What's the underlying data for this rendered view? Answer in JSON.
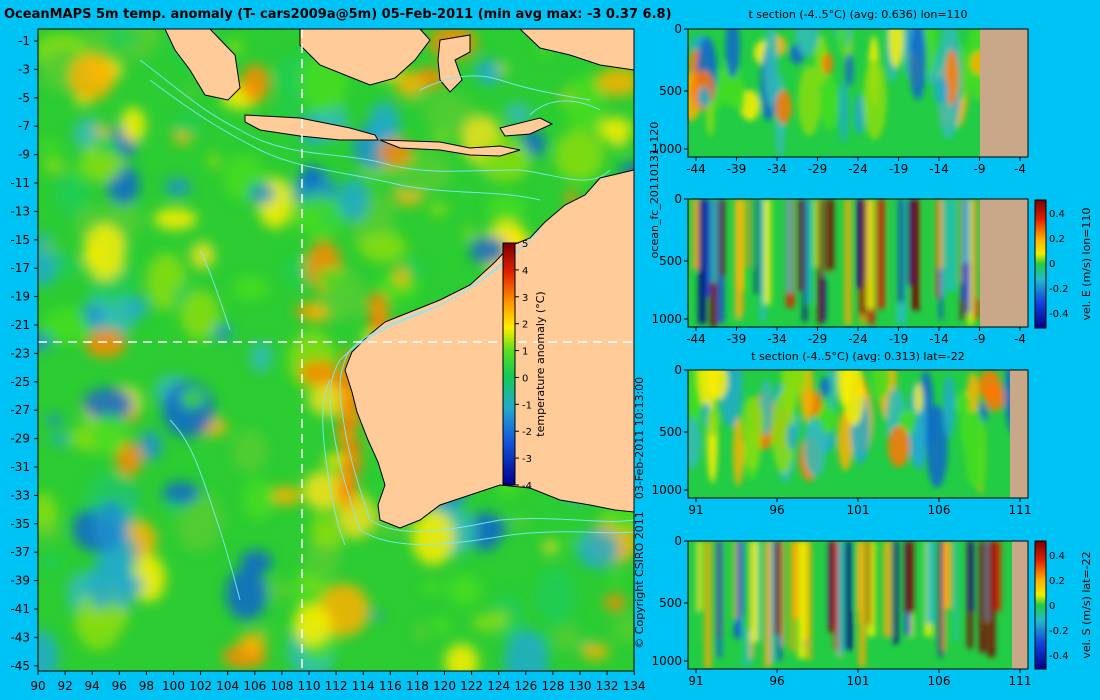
{
  "main_map": {
    "title": "OceanMAPS 5m temp. anomaly (T- cars2009a@5m) 05-Feb-2011 (min avg max: -3 0.37 6.8)",
    "lat_ticks": [
      "-1",
      "-3",
      "-5",
      "-7",
      "-9",
      "-11",
      "-13",
      "-15",
      "-17",
      "-19",
      "-21",
      "-23",
      "-25",
      "-27",
      "-29",
      "-31",
      "-33",
      "-35",
      "-37",
      "-39",
      "-41",
      "-43",
      "-45"
    ],
    "lon_ticks": [
      "90",
      "92",
      "94",
      "96",
      "98",
      "100",
      "102",
      "104",
      "106",
      "108",
      "110",
      "112",
      "114",
      "116",
      "118",
      "120",
      "122",
      "124",
      "126",
      "128",
      "130",
      "132",
      "134"
    ],
    "colorbar": {
      "label": "temperature anomaly (°C)",
      "ticks": [
        "5",
        "4",
        "3",
        "2",
        "1",
        "0",
        "-1",
        "-2",
        "-3",
        "-4"
      ]
    },
    "section_line_lon": 110,
    "section_line_lat": -22
  },
  "side_text": {
    "run_label": "ocean_fc_20110131_120",
    "date_label": "03-Feb-2011 10:13:00",
    "copyright": "© Copyright CSIRO 2011"
  },
  "panels": [
    {
      "title": "t section (-4..5°C) (avg: 0.636) lon=110",
      "x_ticks": [
        "-44",
        "-39",
        "-34",
        "-29",
        "-24",
        "-19",
        "-14",
        "-9",
        "-4"
      ],
      "y_ticks": [
        "0",
        "500",
        "1000"
      ],
      "kind": "temp"
    },
    {
      "title": "",
      "x_ticks": [
        "-44",
        "-39",
        "-34",
        "-29",
        "-24",
        "-19",
        "-14",
        "-9",
        "-4"
      ],
      "y_ticks": [
        "0",
        "500",
        "1000"
      ],
      "kind": "vel",
      "colorbar_label": "vel. E (m/s) lon=110",
      "colorbar_ticks": [
        "0.4",
        "0.2",
        "0",
        "-0.2",
        "-0.4"
      ]
    },
    {
      "title": "t section (-4..5°C) (avg: 0.313) lat=-22",
      "x_ticks": [
        "91",
        "96",
        "101",
        "106",
        "111"
      ],
      "y_ticks": [
        "0",
        "500",
        "1000"
      ],
      "kind": "temp"
    },
    {
      "title": "",
      "x_ticks": [
        "91",
        "96",
        "101",
        "106",
        "111"
      ],
      "y_ticks": [
        "0",
        "500",
        "1000"
      ],
      "kind": "vel",
      "colorbar_label": "vel. S (m/s) lat=-22",
      "colorbar_ticks": [
        "0.4",
        "0.2",
        "0",
        "-0.2",
        "-0.4"
      ]
    }
  ],
  "colors": {
    "background": "#00c3f5",
    "land": "#ffcc99",
    "section_land": "#c8a888",
    "ocean_base": "#22cc33"
  }
}
